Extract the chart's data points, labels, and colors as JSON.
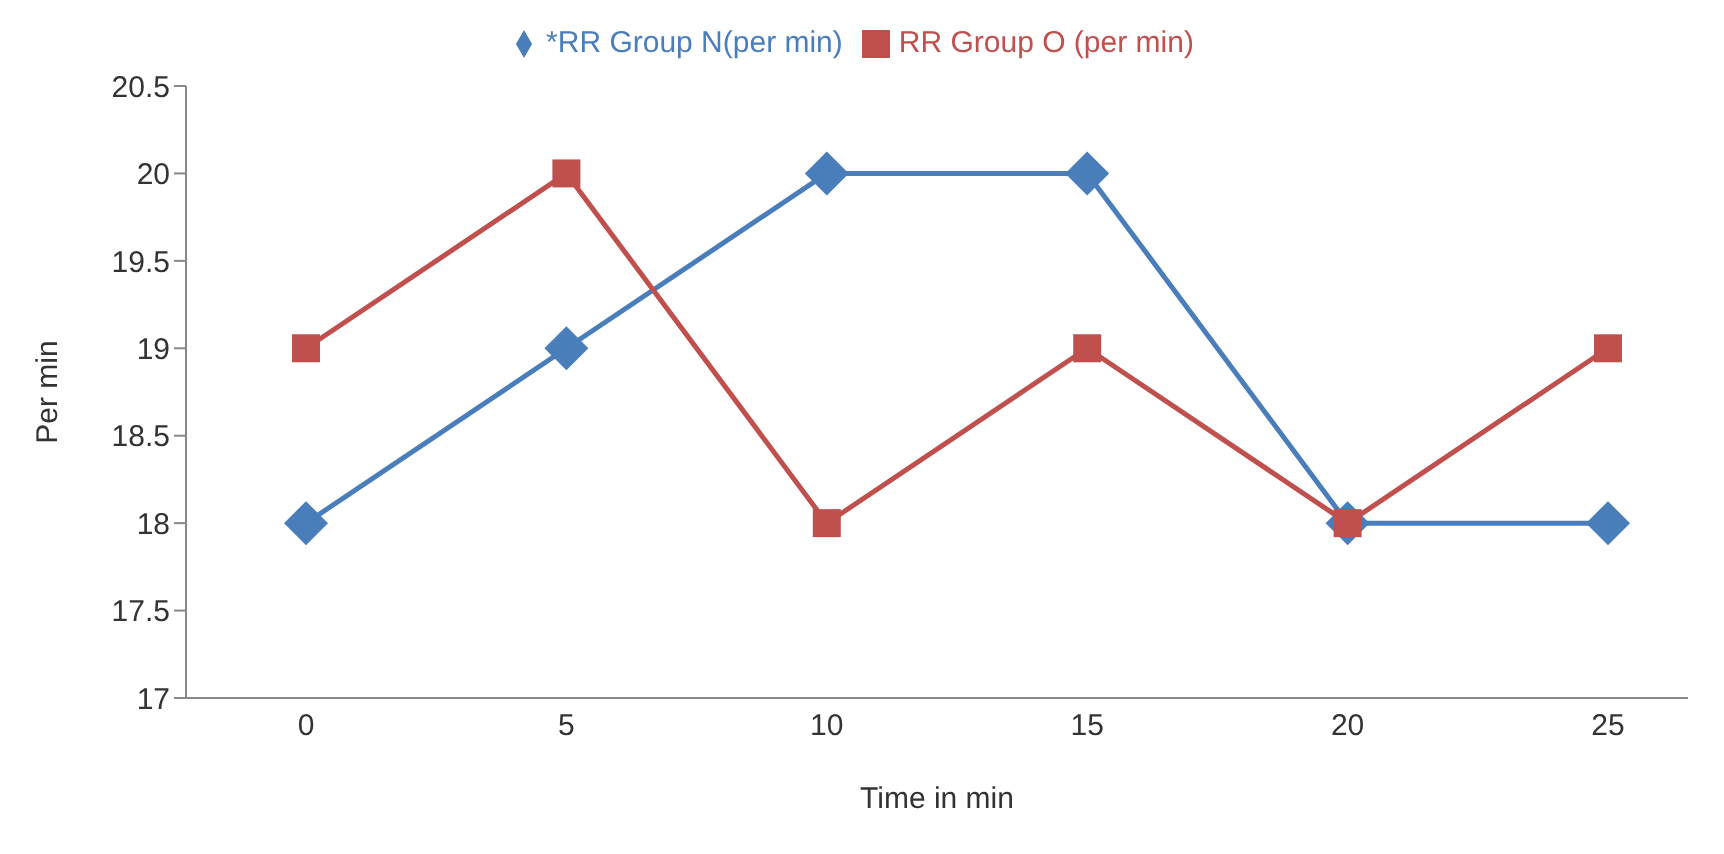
{
  "chart_data": {
    "type": "line",
    "xlabel": "Time in min",
    "ylabel": "Per min",
    "categories": [
      "0",
      "5",
      "10",
      "15",
      "20",
      "25"
    ],
    "series": [
      {
        "name": "*RR Group N(per min)",
        "color": "#4a7ebb",
        "marker": "diamond",
        "values": [
          18,
          19,
          20,
          20,
          18,
          18
        ]
      },
      {
        "name": "RR Group O (per min)",
        "color": "#c0504d",
        "marker": "square",
        "values": [
          19,
          20,
          18,
          19,
          18,
          19
        ]
      }
    ],
    "ylim": [
      17,
      20.5
    ],
    "yticks": [
      17,
      17.5,
      18,
      18.5,
      19,
      19.5,
      20,
      20.5
    ],
    "grid": false,
    "legend": "top",
    "line_style": "solid"
  }
}
